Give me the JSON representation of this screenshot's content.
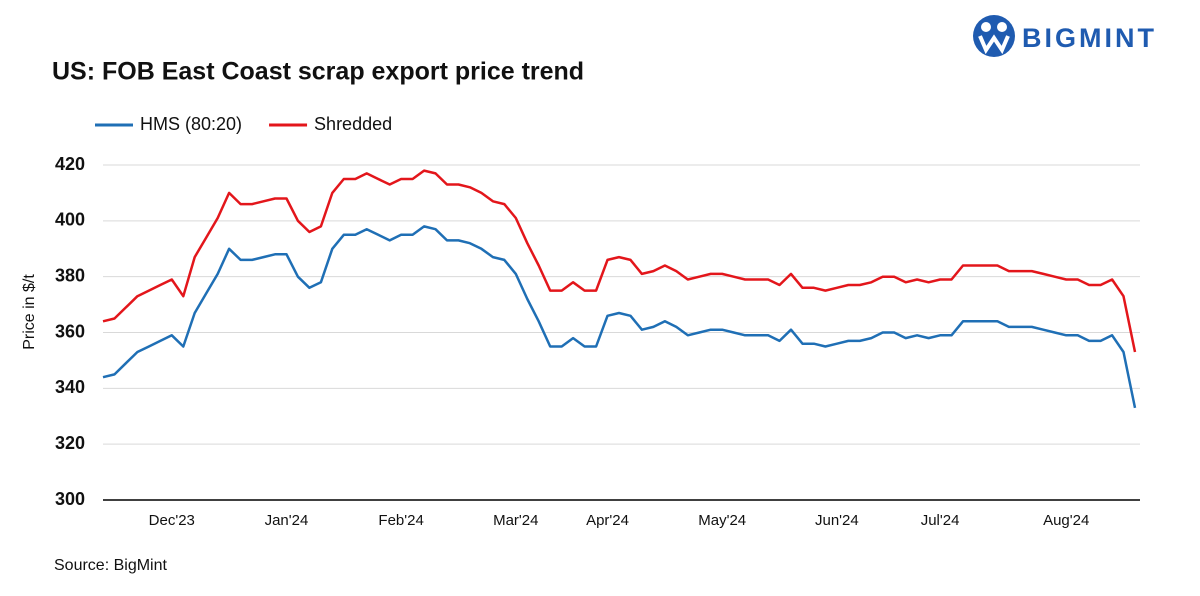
{
  "brand": "BIGMINT",
  "chart_data": {
    "type": "line",
    "title": "US: FOB East Coast scrap export price trend",
    "ylabel": "Price in $/t",
    "source": "Source: BigMint",
    "categories": [
      null,
      null,
      null,
      null,
      null,
      null,
      "Dec'23",
      null,
      null,
      null,
      null,
      null,
      null,
      null,
      null,
      null,
      "Jan'24",
      null,
      null,
      null,
      null,
      null,
      null,
      null,
      null,
      null,
      "Feb'24",
      null,
      null,
      null,
      null,
      null,
      null,
      null,
      null,
      null,
      "Mar'24",
      null,
      null,
      null,
      null,
      null,
      null,
      null,
      "Apr'24",
      null,
      null,
      null,
      null,
      null,
      null,
      null,
      null,
      null,
      "May'24",
      null,
      null,
      null,
      null,
      null,
      null,
      null,
      null,
      null,
      "Jun'24",
      null,
      null,
      null,
      null,
      null,
      null,
      null,
      null,
      "Jul'24",
      null,
      null,
      null,
      null,
      null,
      null,
      null,
      null,
      null,
      null,
      "Aug'24",
      null,
      null,
      null,
      null,
      null,
      null
    ],
    "series": [
      {
        "name": "HMS (80:20)",
        "color": "#1f6fb5",
        "values": [
          344,
          345,
          349,
          353,
          355,
          357,
          359,
          355,
          367,
          374,
          381,
          390,
          386,
          386,
          387,
          388,
          388,
          380,
          376,
          378,
          390,
          395,
          395,
          397,
          395,
          393,
          395,
          395,
          398,
          397,
          393,
          393,
          392,
          390,
          387,
          386,
          381,
          372,
          364,
          355,
          355,
          358,
          355,
          355,
          366,
          367,
          366,
          361,
          362,
          364,
          362,
          359,
          360,
          361,
          361,
          360,
          359,
          359,
          359,
          357,
          361,
          356,
          356,
          355,
          356,
          357,
          357,
          358,
          360,
          360,
          358,
          359,
          358,
          359,
          359,
          364,
          364,
          364,
          364,
          362,
          362,
          362,
          361,
          360,
          359,
          359,
          357,
          357,
          359,
          353,
          333
        ]
      },
      {
        "name": "Shredded",
        "color": "#e3161b",
        "values": [
          364,
          365,
          369,
          373,
          375,
          377,
          379,
          373,
          387,
          394,
          401,
          410,
          406,
          406,
          407,
          408,
          408,
          400,
          396,
          398,
          410,
          415,
          415,
          417,
          415,
          413,
          415,
          415,
          418,
          417,
          413,
          413,
          412,
          410,
          407,
          406,
          401,
          392,
          384,
          375,
          375,
          378,
          375,
          375,
          386,
          387,
          386,
          381,
          382,
          384,
          382,
          379,
          380,
          381,
          381,
          380,
          379,
          379,
          379,
          377,
          381,
          376,
          376,
          375,
          376,
          377,
          377,
          378,
          380,
          380,
          378,
          379,
          378,
          379,
          379,
          384,
          384,
          384,
          384,
          382,
          382,
          382,
          381,
          380,
          379,
          379,
          377,
          377,
          379,
          373,
          353
        ]
      }
    ],
    "ylim": [
      300,
      420
    ],
    "yticks": [
      300,
      320,
      340,
      360,
      380,
      400,
      420
    ],
    "grid": true,
    "legend": "top-left"
  }
}
